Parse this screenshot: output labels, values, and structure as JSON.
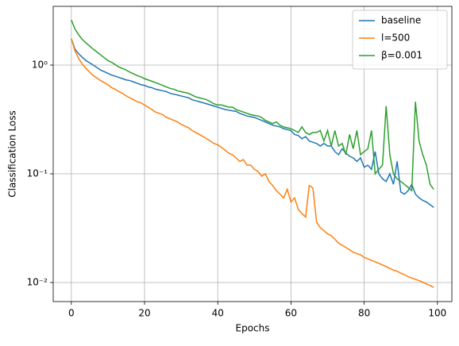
{
  "chart_data": {
    "type": "line",
    "xlabel": "Epochs",
    "ylabel": "Classification Loss",
    "x": [
      0,
      1,
      2,
      3,
      4,
      5,
      6,
      7,
      8,
      9,
      10,
      11,
      12,
      13,
      14,
      15,
      16,
      17,
      18,
      19,
      20,
      21,
      22,
      23,
      24,
      25,
      26,
      27,
      28,
      29,
      30,
      31,
      32,
      33,
      34,
      35,
      36,
      37,
      38,
      39,
      40,
      41,
      42,
      43,
      44,
      45,
      46,
      47,
      48,
      49,
      50,
      51,
      52,
      53,
      54,
      55,
      56,
      57,
      58,
      59,
      60,
      61,
      62,
      63,
      64,
      65,
      66,
      67,
      68,
      69,
      70,
      71,
      72,
      73,
      74,
      75,
      76,
      77,
      78,
      79,
      80,
      81,
      82,
      83,
      84,
      85,
      86,
      87,
      88,
      89,
      90,
      91,
      92,
      93,
      94,
      95,
      96,
      97,
      98,
      99
    ],
    "series": [
      {
        "name": "baseline",
        "color": "#1f77b4",
        "values": [
          1.75,
          1.4,
          1.27,
          1.18,
          1.1,
          1.05,
          1.0,
          0.95,
          0.9,
          0.87,
          0.84,
          0.81,
          0.79,
          0.77,
          0.75,
          0.73,
          0.72,
          0.7,
          0.68,
          0.66,
          0.65,
          0.63,
          0.62,
          0.6,
          0.59,
          0.58,
          0.57,
          0.55,
          0.54,
          0.53,
          0.52,
          0.51,
          0.5,
          0.48,
          0.47,
          0.46,
          0.45,
          0.44,
          0.43,
          0.42,
          0.41,
          0.4,
          0.39,
          0.385,
          0.38,
          0.375,
          0.36,
          0.35,
          0.34,
          0.335,
          0.33,
          0.32,
          0.31,
          0.3,
          0.29,
          0.28,
          0.275,
          0.27,
          0.26,
          0.255,
          0.25,
          0.23,
          0.225,
          0.21,
          0.22,
          0.2,
          0.195,
          0.19,
          0.18,
          0.19,
          0.18,
          0.18,
          0.16,
          0.15,
          0.17,
          0.155,
          0.145,
          0.14,
          0.13,
          0.14,
          0.115,
          0.12,
          0.11,
          0.16,
          0.1,
          0.09,
          0.085,
          0.1,
          0.08,
          0.13,
          0.068,
          0.065,
          0.07,
          0.08,
          0.065,
          0.06,
          0.057,
          0.055,
          0.052,
          0.049
        ]
      },
      {
        "name": "l=500",
        "color": "#ff7f0e",
        "values": [
          1.75,
          1.35,
          1.15,
          1.02,
          0.93,
          0.86,
          0.8,
          0.76,
          0.72,
          0.69,
          0.66,
          0.62,
          0.6,
          0.57,
          0.55,
          0.52,
          0.5,
          0.48,
          0.46,
          0.45,
          0.43,
          0.41,
          0.39,
          0.37,
          0.36,
          0.35,
          0.33,
          0.32,
          0.31,
          0.3,
          0.285,
          0.275,
          0.265,
          0.25,
          0.24,
          0.23,
          0.22,
          0.21,
          0.2,
          0.19,
          0.185,
          0.175,
          0.165,
          0.155,
          0.15,
          0.14,
          0.13,
          0.135,
          0.12,
          0.12,
          0.11,
          0.105,
          0.095,
          0.1,
          0.085,
          0.078,
          0.07,
          0.065,
          0.06,
          0.072,
          0.055,
          0.06,
          0.047,
          0.043,
          0.04,
          0.078,
          0.074,
          0.036,
          0.032,
          0.03,
          0.028,
          0.027,
          0.025,
          0.023,
          0.022,
          0.021,
          0.02,
          0.019,
          0.0185,
          0.018,
          0.017,
          0.0165,
          0.016,
          0.0155,
          0.015,
          0.0145,
          0.014,
          0.0135,
          0.013,
          0.0127,
          0.0122,
          0.0118,
          0.0113,
          0.011,
          0.0107,
          0.0104,
          0.0101,
          0.0097,
          0.0094,
          0.009
        ]
      },
      {
        "name": "β=0.001",
        "color": "#2ca02c",
        "values": [
          2.6,
          2.15,
          1.9,
          1.72,
          1.6,
          1.5,
          1.4,
          1.32,
          1.24,
          1.17,
          1.1,
          1.06,
          1.01,
          0.96,
          0.93,
          0.9,
          0.86,
          0.83,
          0.8,
          0.78,
          0.75,
          0.73,
          0.71,
          0.69,
          0.67,
          0.65,
          0.63,
          0.61,
          0.6,
          0.58,
          0.57,
          0.56,
          0.55,
          0.53,
          0.51,
          0.5,
          0.49,
          0.48,
          0.46,
          0.44,
          0.43,
          0.43,
          0.42,
          0.41,
          0.41,
          0.39,
          0.38,
          0.37,
          0.36,
          0.35,
          0.345,
          0.34,
          0.33,
          0.31,
          0.3,
          0.29,
          0.3,
          0.28,
          0.27,
          0.265,
          0.26,
          0.25,
          0.24,
          0.27,
          0.24,
          0.23,
          0.24,
          0.24,
          0.25,
          0.2,
          0.25,
          0.18,
          0.25,
          0.18,
          0.19,
          0.15,
          0.23,
          0.17,
          0.25,
          0.15,
          0.16,
          0.17,
          0.25,
          0.1,
          0.11,
          0.12,
          0.42,
          0.15,
          0.1,
          0.09,
          0.085,
          0.08,
          0.075,
          0.07,
          0.46,
          0.2,
          0.15,
          0.12,
          0.08,
          0.072
        ]
      }
    ],
    "xlim": [
      -4.95,
      103.95
    ],
    "xticks": [
      0,
      20,
      40,
      60,
      80,
      100
    ],
    "ylim": [
      0.00668,
      3.47
    ],
    "ylog": true,
    "yticks": [
      {
        "value": 0.01,
        "label": "10⁻²"
      },
      {
        "value": 0.1,
        "label": "10⁻¹"
      },
      {
        "value": 1,
        "label": "10⁰"
      }
    ],
    "grid": true,
    "legend": "upper right"
  }
}
